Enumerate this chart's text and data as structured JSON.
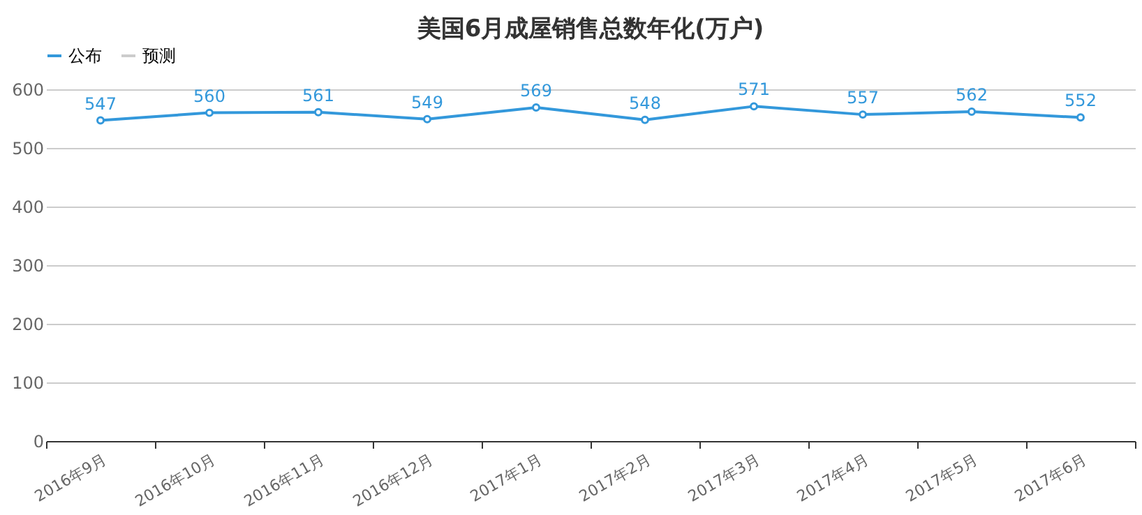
{
  "chart_data": {
    "type": "line",
    "title": "美国6月成屋销售总数年化(万户)",
    "categories": [
      "2016年9月",
      "2016年10月",
      "2016年11月",
      "2016年12月",
      "2017年1月",
      "2017年2月",
      "2017年3月",
      "2017年4月",
      "2017年5月",
      "2017年6月"
    ],
    "series": [
      {
        "name": "公布",
        "color": "#3398db",
        "values": [
          547,
          560,
          561,
          549,
          569,
          548,
          571,
          557,
          562,
          552
        ]
      },
      {
        "name": "预测",
        "color": "#cccccc",
        "values": [
          null,
          null,
          null,
          null,
          null,
          null,
          null,
          null,
          null,
          null
        ]
      }
    ],
    "ylim": [
      0,
      600
    ],
    "yticks": [
      0,
      100,
      200,
      300,
      400,
      500,
      600
    ],
    "grid": "y",
    "legend": "top left",
    "marker": "circle",
    "line_style": "solid",
    "data_labels": true
  }
}
